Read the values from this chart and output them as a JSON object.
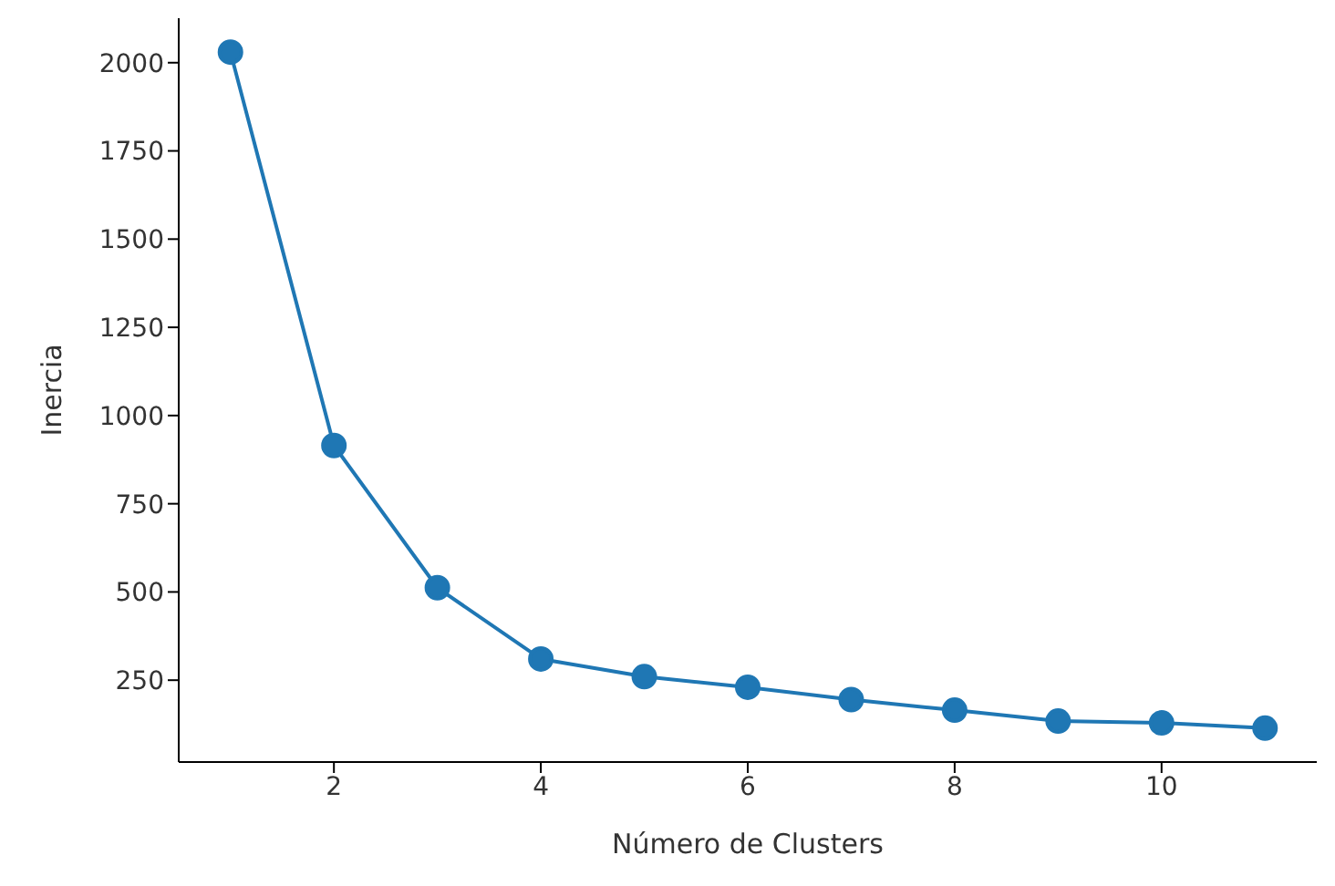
{
  "chart_data": {
    "type": "line",
    "xlabel": "Número de Clusters",
    "ylabel": "Inercia",
    "x": [
      1,
      2,
      3,
      4,
      5,
      6,
      7,
      8,
      9,
      10,
      11
    ],
    "series": [
      {
        "color": "#1f77b4",
        "values": [
          2030,
          915,
          512,
          310,
          260,
          230,
          195,
          165,
          134,
          129,
          114
        ]
      }
    ],
    "xlim": [
      0.5,
      11.5
    ],
    "xticks": [
      2,
      4,
      6,
      8,
      10
    ],
    "ylim": [
      18,
      2126
    ],
    "yticks": [
      250,
      500,
      750,
      1000,
      1250,
      1500,
      1750,
      2000
    ],
    "grid": false,
    "legend": false,
    "marker": "circle",
    "line_style": "solid"
  }
}
